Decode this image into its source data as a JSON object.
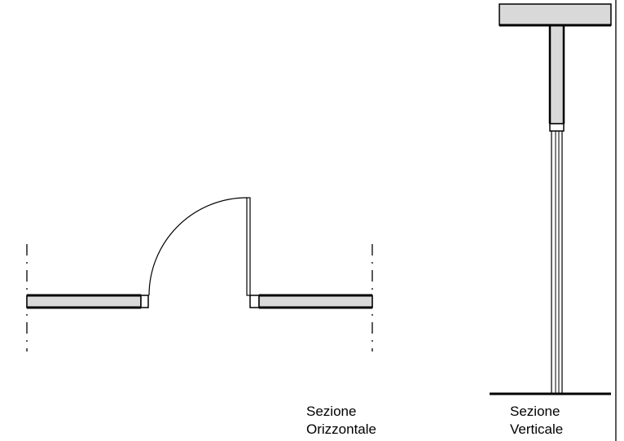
{
  "labels": {
    "horizontal_section": {
      "line1": "Sezione",
      "line2": "Orizzontale"
    },
    "vertical_section": {
      "line1": "Sezione",
      "line2": "Verticale"
    }
  },
  "colors": {
    "wall_fill": "#d9d9d9",
    "stroke": "#000000",
    "background": "#ffffff"
  }
}
